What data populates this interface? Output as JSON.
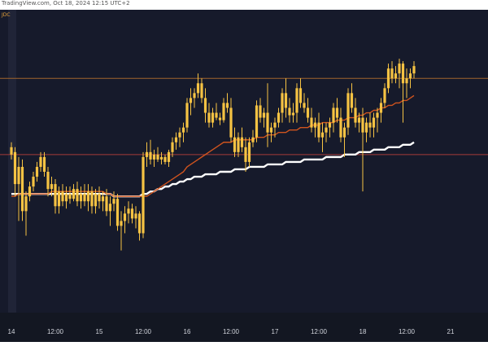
{
  "header": {
    "watermark_text": "TradingView.com, Oct 18, 2024 12:15 UTC+2"
  },
  "chart_header": {
    "symbol_fragment": "JDC"
  },
  "colors": {
    "background": "#161a2b",
    "candle": "#f6c343",
    "wick": "#f6c343",
    "ma_fast": "#d0541e",
    "ma_slow": "#ffffff",
    "resistance_line": "#a0642c",
    "support_line": "#a63a3a",
    "axis_text": "#d1d4dc",
    "axis_bg": "#131722"
  },
  "chart_data": {
    "type": "candlestick",
    "title": "",
    "xlabel": "",
    "ylabel": "",
    "ylim": [
      0,
      100
    ],
    "x_ticks": [
      {
        "x": 0,
        "label": "14"
      },
      {
        "x": 12,
        "label": "12:00"
      },
      {
        "x": 24,
        "label": "15"
      },
      {
        "x": 36,
        "label": "12:00"
      },
      {
        "x": 48,
        "label": "16"
      },
      {
        "x": 60,
        "label": "12:00"
      },
      {
        "x": 72,
        "label": "17"
      },
      {
        "x": 84,
        "label": "12:00"
      },
      {
        "x": 96,
        "label": "18"
      },
      {
        "x": 108,
        "label": "12:00"
      },
      {
        "x": 120,
        "label": "21"
      }
    ],
    "horizontal_lines": [
      {
        "name": "resistance",
        "value": 88
      },
      {
        "name": "support",
        "value": 57
      }
    ],
    "candles": [
      [
        0,
        0,
        60,
        62,
        55,
        57
      ],
      [
        0,
        1,
        58,
        60,
        40,
        45
      ],
      [
        0,
        2,
        45,
        56,
        30,
        52
      ],
      [
        0,
        3,
        52,
        55,
        30,
        34
      ],
      [
        0,
        4,
        34,
        42,
        24,
        40
      ],
      [
        0,
        5,
        40,
        46,
        38,
        44
      ],
      [
        0,
        6,
        44,
        50,
        42,
        48
      ],
      [
        0,
        7,
        48,
        54,
        46,
        52
      ],
      [
        0,
        8,
        52,
        58,
        50,
        56
      ],
      [
        0,
        9,
        56,
        58,
        48,
        50
      ],
      [
        0,
        10,
        50,
        52,
        40,
        43
      ],
      [
        0,
        11,
        43,
        48,
        40,
        45
      ],
      [
        0,
        12,
        45,
        47,
        33,
        36
      ],
      [
        0,
        13,
        36,
        44,
        33,
        42
      ],
      [
        0,
        14,
        42,
        45,
        36,
        38
      ],
      [
        0,
        15,
        38,
        44,
        35,
        41
      ],
      [
        0,
        16,
        41,
        44,
        37,
        39
      ],
      [
        0,
        17,
        39,
        45,
        38,
        43
      ],
      [
        0,
        18,
        43,
        46,
        36,
        38
      ],
      [
        0,
        19,
        38,
        44,
        35,
        41
      ],
      [
        0,
        20,
        41,
        45,
        36,
        38
      ],
      [
        0,
        21,
        38,
        45,
        34,
        42
      ],
      [
        0,
        22,
        42,
        44,
        33,
        36
      ],
      [
        0,
        23,
        36,
        43,
        33,
        41
      ],
      [
        0,
        24,
        41,
        44,
        35,
        38
      ],
      [
        0,
        25,
        38,
        42,
        34,
        40
      ],
      [
        0,
        26,
        40,
        43,
        32,
        34
      ],
      [
        0,
        27,
        34,
        40,
        28,
        37
      ],
      [
        0,
        28,
        37,
        42,
        34,
        39
      ],
      [
        0,
        29,
        39,
        41,
        26,
        28
      ],
      [
        0,
        30,
        28,
        34,
        18,
        30
      ],
      [
        0,
        31,
        30,
        36,
        25,
        33
      ],
      [
        0,
        32,
        33,
        38,
        29,
        35
      ],
      [
        0,
        33,
        35,
        37,
        29,
        31
      ],
      [
        0,
        34,
        31,
        36,
        27,
        33
      ],
      [
        0,
        35,
        33,
        34,
        22,
        25
      ],
      [
        0,
        36,
        25,
        58,
        23,
        56
      ],
      [
        0,
        37,
        56,
        62,
        52,
        58
      ],
      [
        0,
        38,
        58,
        63,
        53,
        55
      ],
      [
        0,
        39,
        55,
        59,
        52,
        57
      ],
      [
        0,
        40,
        57,
        60,
        54,
        55
      ],
      [
        0,
        41,
        55,
        58,
        53,
        56
      ],
      [
        0,
        42,
        56,
        57,
        53,
        54
      ],
      [
        0,
        43,
        54,
        59,
        52,
        58
      ],
      [
        0,
        44,
        58,
        64,
        56,
        62
      ],
      [
        0,
        45,
        62,
        66,
        59,
        64
      ],
      [
        0,
        46,
        64,
        68,
        60,
        66
      ],
      [
        0,
        47,
        66,
        70,
        62,
        68
      ],
      [
        0,
        48,
        68,
        80,
        66,
        78
      ],
      [
        0,
        49,
        78,
        84,
        73,
        80
      ],
      [
        0,
        50,
        80,
        84,
        76,
        82
      ],
      [
        0,
        51,
        82,
        90,
        80,
        86
      ],
      [
        0,
        52,
        86,
        88,
        78,
        80
      ],
      [
        0,
        53,
        80,
        84,
        70,
        74
      ],
      [
        0,
        54,
        74,
        78,
        68,
        70
      ],
      [
        0,
        55,
        70,
        76,
        68,
        74
      ],
      [
        0,
        56,
        74,
        78,
        71,
        72
      ],
      [
        0,
        57,
        72,
        74,
        69,
        71
      ],
      [
        0,
        58,
        71,
        80,
        70,
        78
      ],
      [
        0,
        59,
        78,
        82,
        74,
        76
      ],
      [
        0,
        60,
        76,
        80,
        62,
        64
      ],
      [
        0,
        61,
        64,
        68,
        56,
        58
      ],
      [
        0,
        62,
        58,
        66,
        56,
        64
      ],
      [
        0,
        63,
        64,
        68,
        58,
        60
      ],
      [
        0,
        64,
        60,
        64,
        50,
        54
      ],
      [
        0,
        65,
        54,
        64,
        52,
        62
      ],
      [
        0,
        66,
        62,
        67,
        60,
        64
      ],
      [
        0,
        67,
        64,
        79,
        62,
        77
      ],
      [
        0,
        68,
        77,
        80,
        70,
        72
      ],
      [
        0,
        69,
        72,
        76,
        68,
        74
      ],
      [
        0,
        70,
        74,
        86,
        60,
        66
      ],
      [
        0,
        71,
        66,
        70,
        62,
        68
      ],
      [
        0,
        72,
        68,
        72,
        64,
        70
      ],
      [
        0,
        73,
        70,
        76,
        68,
        74
      ],
      [
        0,
        74,
        74,
        84,
        70,
        82
      ],
      [
        0,
        75,
        82,
        88,
        72,
        76
      ],
      [
        0,
        76,
        76,
        80,
        70,
        73
      ],
      [
        0,
        77,
        73,
        78,
        70,
        74
      ],
      [
        0,
        78,
        74,
        86,
        70,
        84
      ],
      [
        0,
        79,
        84,
        88,
        76,
        78
      ],
      [
        0,
        80,
        78,
        82,
        74,
        76
      ],
      [
        0,
        81,
        76,
        80,
        70,
        72
      ],
      [
        0,
        82,
        72,
        76,
        66,
        68
      ],
      [
        0,
        83,
        68,
        72,
        64,
        70
      ],
      [
        0,
        84,
        70,
        74,
        62,
        64
      ],
      [
        0,
        85,
        64,
        70,
        58,
        66
      ],
      [
        0,
        86,
        66,
        70,
        62,
        68
      ],
      [
        0,
        87,
        68,
        72,
        64,
        70
      ],
      [
        0,
        88,
        70,
        78,
        66,
        76
      ],
      [
        0,
        89,
        76,
        80,
        70,
        72
      ],
      [
        0,
        90,
        72,
        76,
        62,
        64
      ],
      [
        0,
        91,
        64,
        70,
        56,
        68
      ],
      [
        0,
        92,
        68,
        84,
        65,
        82
      ],
      [
        0,
        93,
        82,
        86,
        74,
        76
      ],
      [
        0,
        94,
        76,
        80,
        68,
        70
      ],
      [
        0,
        95,
        70,
        74,
        66,
        72
      ],
      [
        0,
        96,
        72,
        76,
        42,
        66
      ],
      [
        0,
        97,
        66,
        72,
        62,
        70
      ],
      [
        0,
        98,
        70,
        74,
        64,
        68
      ],
      [
        0,
        99,
        68,
        74,
        64,
        72
      ],
      [
        0,
        100,
        72,
        76,
        66,
        74
      ],
      [
        0,
        101,
        74,
        80,
        70,
        78
      ],
      [
        0,
        102,
        78,
        86,
        76,
        84
      ],
      [
        0,
        103,
        84,
        94,
        82,
        92
      ],
      [
        0,
        104,
        92,
        95,
        86,
        88
      ],
      [
        0,
        105,
        88,
        93,
        86,
        90
      ],
      [
        0,
        106,
        90,
        96,
        84,
        94
      ],
      [
        0,
        107,
        94,
        95,
        70,
        86
      ],
      [
        0,
        108,
        86,
        92,
        80,
        88
      ],
      [
        0,
        109,
        88,
        92,
        84,
        90
      ],
      [
        0,
        110,
        90,
        95,
        88,
        93
      ]
    ],
    "ma_fast": [
      40,
      40,
      41,
      41,
      41,
      41,
      41,
      41,
      41,
      41,
      41,
      42,
      42,
      42,
      42,
      42,
      42,
      42,
      42,
      42,
      42,
      42,
      42,
      42,
      42,
      42,
      41,
      41,
      40,
      40,
      40,
      40,
      40,
      40,
      40,
      40,
      40,
      40,
      41,
      42,
      43,
      44,
      45,
      46,
      47,
      48,
      49,
      50,
      52,
      53,
      54,
      55,
      56,
      57,
      58,
      59,
      60,
      61,
      62,
      62,
      62,
      63,
      63,
      63,
      63,
      63,
      63,
      64,
      64,
      64,
      65,
      65,
      65,
      66,
      66,
      66,
      67,
      67,
      67,
      68,
      68,
      68,
      69,
      69,
      69,
      70,
      70,
      70,
      70,
      71,
      71,
      71,
      72,
      72,
      72,
      73,
      73,
      74,
      74,
      75,
      75,
      76,
      76,
      77,
      77,
      78,
      78,
      79,
      79,
      80,
      81
    ],
    "ma_slow": [
      41,
      41,
      41,
      41,
      41,
      41,
      41,
      41,
      41,
      41,
      41,
      41,
      41,
      41,
      41,
      41,
      41,
      41,
      41,
      41,
      41,
      41,
      41,
      41,
      41,
      41,
      41,
      41,
      40,
      40,
      40,
      40,
      40,
      40,
      40,
      40,
      41,
      41,
      42,
      42,
      43,
      43,
      44,
      44,
      45,
      45,
      46,
      46,
      47,
      47,
      48,
      48,
      48,
      49,
      49,
      49,
      49,
      50,
      50,
      50,
      50,
      51,
      51,
      51,
      51,
      52,
      52,
      52,
      52,
      52,
      53,
      53,
      53,
      53,
      53,
      54,
      54,
      54,
      54,
      54,
      55,
      55,
      55,
      55,
      55,
      55,
      56,
      56,
      56,
      56,
      56,
      57,
      57,
      57,
      57,
      58,
      58,
      58,
      58,
      59,
      59,
      59,
      59,
      60,
      60,
      60,
      60,
      61,
      61,
      61,
      62
    ]
  }
}
